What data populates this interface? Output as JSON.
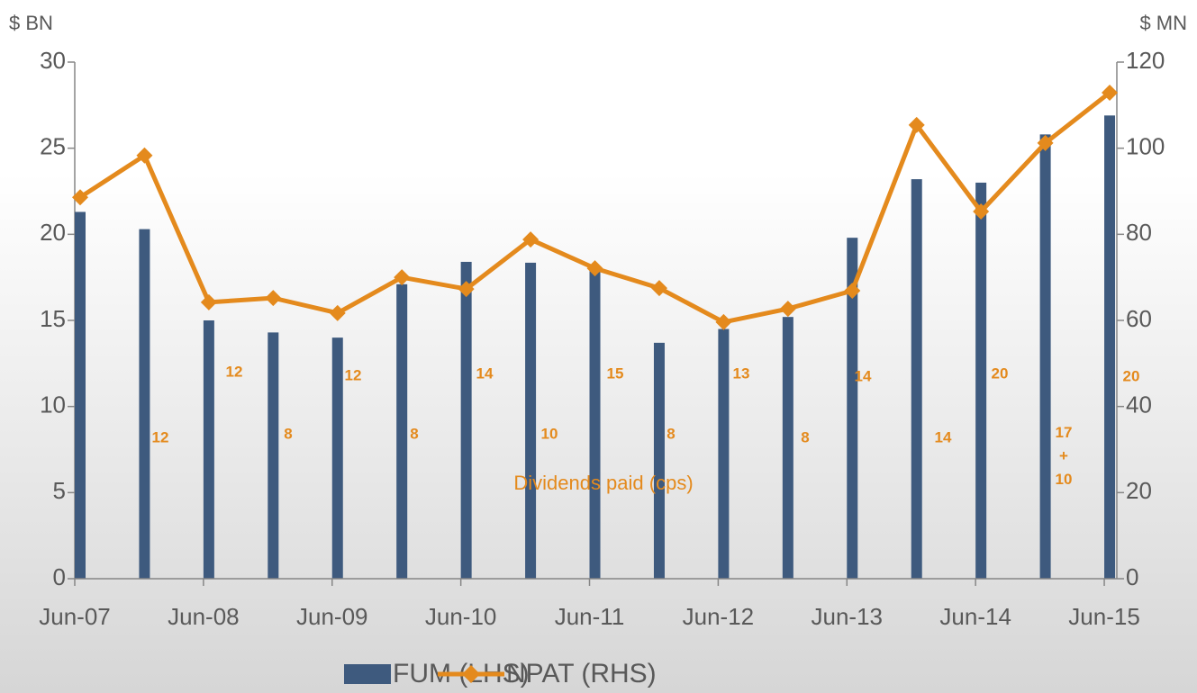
{
  "chart_data": {
    "type": "bar-line",
    "y_label": "$ BN",
    "y2_label": "$ MN",
    "categories": [
      "Jun-07",
      null,
      "Jun-08",
      null,
      "Jun-09",
      null,
      "Jun-10",
      null,
      "Jun-11",
      null,
      "Jun-12",
      null,
      "Jun-13",
      null,
      "Jun-14",
      null,
      "Jun-15"
    ],
    "series": [
      {
        "name": "FUM (LHS)",
        "type": "bar",
        "color": "#3e5a7e",
        "axis": "y",
        "values": [
          21.3,
          20.3,
          15.0,
          14.3,
          14.0,
          17.1,
          18.4,
          18.35,
          18.0,
          13.7,
          14.5,
          15.2,
          19.8,
          23.2,
          23.0,
          25.8,
          26.9
        ]
      },
      {
        "name": "NPAT (RHS)",
        "type": "line",
        "color": "#e48a1d",
        "axis": "y2",
        "values": [
          88.6,
          98.3,
          64.2,
          65.2,
          61.7,
          70.0,
          67.3,
          78.8,
          72.1,
          67.5,
          59.6,
          62.7,
          66.9,
          105.4,
          85.3,
          101.2,
          112.9
        ]
      }
    ],
    "ylim": [
      0,
      30
    ],
    "yticks": [
      0,
      5,
      10,
      15,
      20,
      25,
      30
    ],
    "y2lim": [
      0,
      120
    ],
    "y2ticks": [
      0,
      20,
      40,
      60,
      80,
      100,
      120
    ],
    "dividends": {
      "title": "Dividends paid (cps)",
      "labels": [
        "12",
        "12",
        "8",
        "12",
        "8",
        "14",
        "10",
        "15",
        "8",
        "13",
        "8",
        "14",
        "14",
        "20",
        "17\n+\n10",
        "20"
      ]
    }
  }
}
